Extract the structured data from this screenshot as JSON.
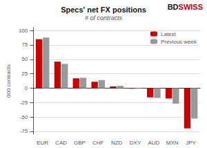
{
  "chart_data": {
    "type": "bar",
    "title": "Specs' net FX positions",
    "subtitle": "# of contracts",
    "ylabel": "000 contracts",
    "categories": [
      "EUR",
      "CAD",
      "GBP",
      "CHF",
      "NZD",
      "DXY",
      "AUD",
      "MXN",
      "JPY"
    ],
    "series": [
      {
        "name": "Latest",
        "color": "#cc0000",
        "values": [
          85,
          46,
          17,
          11,
          3,
          -1,
          -16,
          -18,
          -70
        ]
      },
      {
        "name": "Previous week",
        "color": "#999999",
        "values": [
          88,
          42,
          18,
          14,
          4,
          -1,
          -17,
          -27,
          -53
        ]
      }
    ],
    "ylim": [
      -80,
      105
    ],
    "yticks": [
      -75,
      -50,
      -25,
      0,
      25,
      50,
      75,
      100
    ],
    "grid": true,
    "legend": "upper right",
    "annotations": [
      {
        "text": "BD",
        "color": "#111111"
      },
      {
        "text": "SWISS",
        "color": "#cc0000"
      }
    ]
  }
}
